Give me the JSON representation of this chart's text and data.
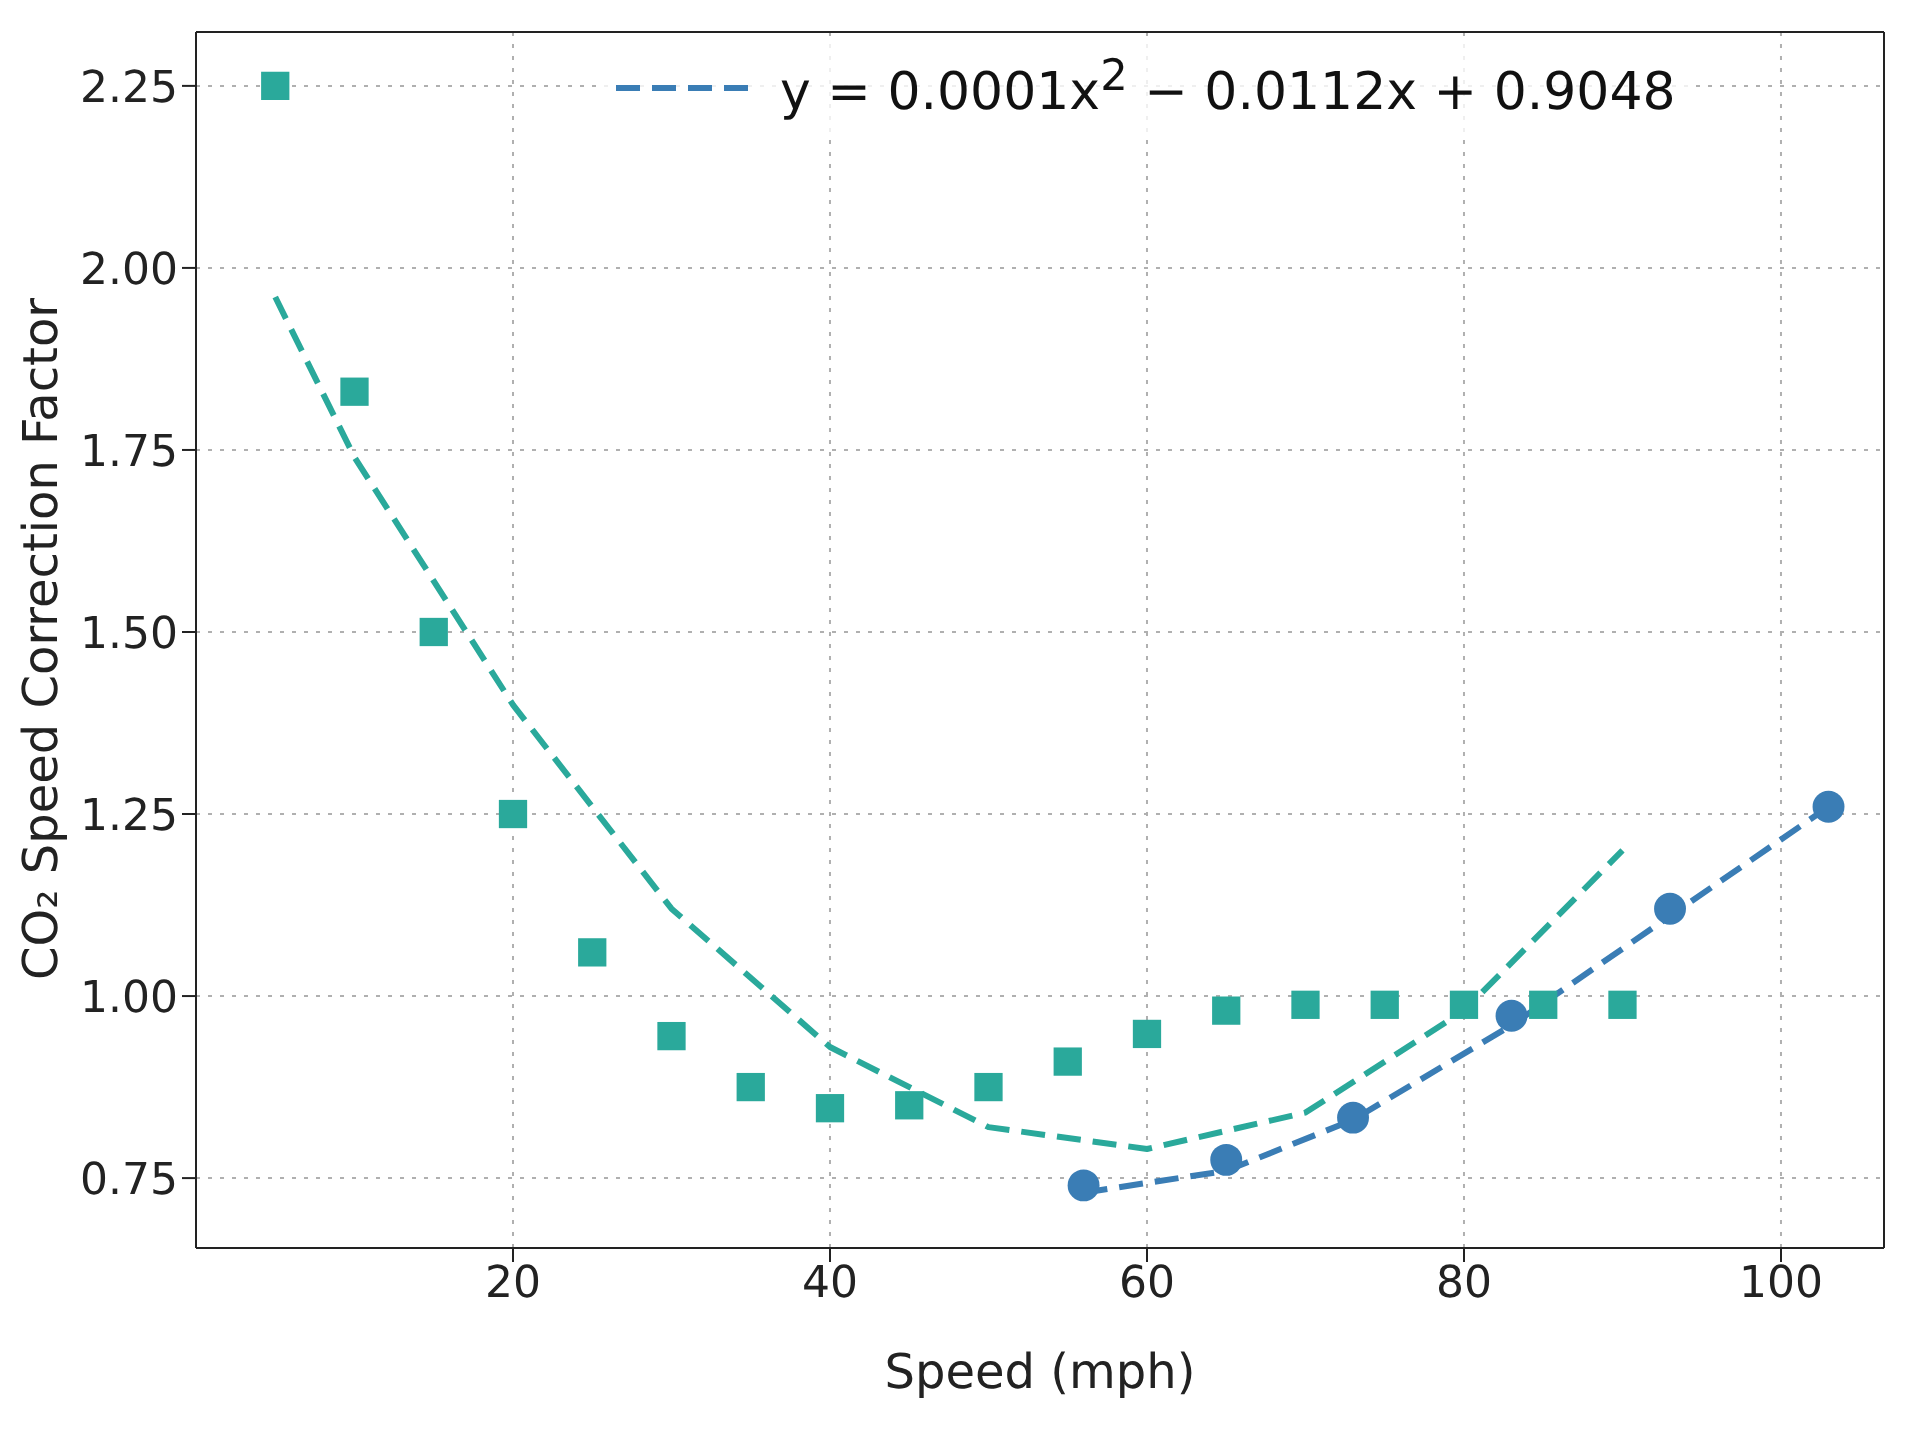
{
  "chart_data": {
    "type": "scatter",
    "xlabel": "Speed (mph)",
    "ylabel": "CO₂ Speed Correction Factor",
    "xlim": [
      0,
      106.5
    ],
    "xticks": [
      20,
      40,
      60,
      80,
      100
    ],
    "ylim": [
      0.654,
      2.324
    ],
    "yticks": [
      0.75,
      {
        "value": 1,
        "label": "1.00"
      },
      1.25,
      {
        "value": 1.5,
        "label": "1.50"
      },
      1.75,
      {
        "value": 2,
        "label": "2.00"
      },
      2.25
    ],
    "grid": true,
    "legend": "top",
    "series": [
      {
        "marker": "circle",
        "color": "#3a7db5",
        "x": [
          56,
          65,
          73,
          83,
          93,
          103
        ],
        "values": [
          0.74,
          0.775,
          0.833,
          0.973,
          1.12,
          1.26
        ]
      },
      {
        "type": "line",
        "name": "y = 0.0001x$^{2}$ − 0.0112x + 0.9048",
        "line_style": "dashed",
        "color": "#3a7db5",
        "x": [
          56,
          65,
          73,
          83,
          93,
          103
        ],
        "values": [
          0.73,
          0.76,
          0.83,
          0.96,
          1.11,
          1.26
        ]
      },
      {
        "marker": "square",
        "color": "#2aa99b",
        "x": [
          5,
          10,
          15,
          20,
          25,
          30,
          35,
          40,
          45,
          50,
          55,
          60,
          65,
          70,
          75,
          80,
          85,
          90
        ],
        "values": [
          2.25,
          1.83,
          1.5,
          1.25,
          1.06,
          0.945,
          0.875,
          0.846,
          0.85,
          0.875,
          0.91,
          0.948,
          0.98,
          0.988,
          0.988,
          0.988,
          0.988,
          0.988
        ]
      },
      {
        "type": "line",
        "line_style": "dashed",
        "color": "#2aa99b",
        "x": [
          5,
          10,
          20,
          30,
          40,
          50,
          60,
          70,
          80,
          90
        ],
        "values": [
          1.96,
          1.74,
          1.4,
          1.12,
          0.93,
          0.82,
          0.79,
          0.84,
          0.98,
          1.2
        ]
      }
    ]
  }
}
